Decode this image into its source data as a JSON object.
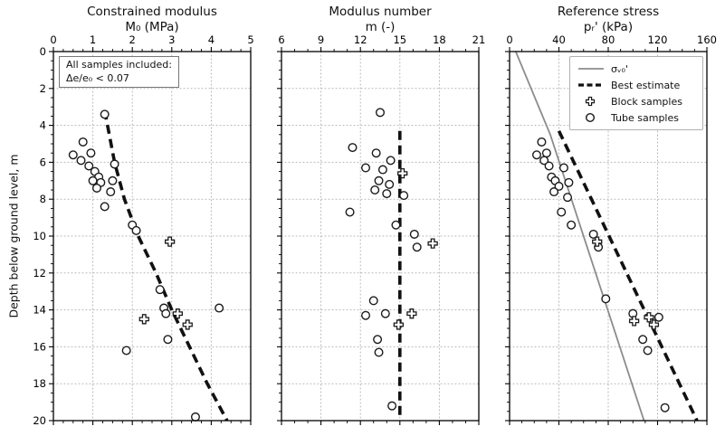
{
  "figure": {
    "ylabel": "Depth below ground level, m"
  },
  "annotation": {
    "line1": "All samples included:",
    "line2": "Δe/e₀ < 0.07"
  },
  "legend": {
    "items": [
      {
        "label": "σᵥ₀'"
      },
      {
        "label": "Best estimate"
      },
      {
        "label": "Block samples"
      },
      {
        "label": "Tube samples"
      }
    ]
  },
  "style": {
    "grid_color": "#b3b3b3",
    "axis_color": "#000000",
    "dash_color": "#111111",
    "sigma_color": "#8c8c8c",
    "marker_edge": "#1a1a1a",
    "marker_fill": "#ffffff"
  },
  "chart_data": [
    {
      "type": "scatter",
      "title": "Constrained modulus",
      "xlabel": "M₀ (MPa)",
      "xlim": [
        0,
        5
      ],
      "xticks": [
        0,
        1,
        2,
        3,
        4,
        5
      ],
      "xminor_step": 0.25,
      "ylim": [
        0,
        20
      ],
      "yticks": [
        0,
        2,
        4,
        6,
        8,
        10,
        12,
        14,
        16,
        18,
        20
      ],
      "yminor_step": 0.5,
      "y_tick_labels": true,
      "tube_samples": [
        [
          1.3,
          3.4
        ],
        [
          0.75,
          4.9
        ],
        [
          0.5,
          5.6
        ],
        [
          0.95,
          5.5
        ],
        [
          0.7,
          5.9
        ],
        [
          0.9,
          6.2
        ],
        [
          1.55,
          6.1
        ],
        [
          1.05,
          6.5
        ],
        [
          1.15,
          6.8
        ],
        [
          1.0,
          7.0
        ],
        [
          1.2,
          7.1
        ],
        [
          1.5,
          7.0
        ],
        [
          1.1,
          7.4
        ],
        [
          1.45,
          7.6
        ],
        [
          1.3,
          8.4
        ],
        [
          2.0,
          9.4
        ],
        [
          2.1,
          9.7
        ],
        [
          2.7,
          12.9
        ],
        [
          2.8,
          13.9
        ],
        [
          4.2,
          13.9
        ],
        [
          2.85,
          14.2
        ],
        [
          2.9,
          15.6
        ],
        [
          1.85,
          16.2
        ],
        [
          3.6,
          19.8
        ]
      ],
      "block_samples": [
        [
          2.95,
          10.3
        ],
        [
          2.3,
          14.5
        ],
        [
          3.15,
          14.2
        ],
        [
          3.4,
          14.8
        ]
      ],
      "best_estimate": [
        [
          1.3,
          3.2
        ],
        [
          1.55,
          6.0
        ],
        [
          1.8,
          8.0
        ],
        [
          2.15,
          10.0
        ],
        [
          2.6,
          12.0
        ],
        [
          3.0,
          14.0
        ],
        [
          3.45,
          16.0
        ],
        [
          3.9,
          18.0
        ],
        [
          4.4,
          20.0
        ]
      ]
    },
    {
      "type": "scatter",
      "title": "Modulus number",
      "xlabel": "m (-)",
      "xlim": [
        6,
        21
      ],
      "xticks": [
        6,
        9,
        12,
        15,
        18,
        21
      ],
      "xminor_step": 1,
      "ylim": [
        0,
        20
      ],
      "yticks": [
        0,
        2,
        4,
        6,
        8,
        10,
        12,
        14,
        16,
        18,
        20
      ],
      "yminor_step": 0.5,
      "y_tick_labels": false,
      "tube_samples": [
        [
          13.5,
          3.3
        ],
        [
          11.4,
          5.2
        ],
        [
          13.2,
          5.5
        ],
        [
          14.3,
          5.9
        ],
        [
          12.4,
          6.3
        ],
        [
          13.7,
          6.4
        ],
        [
          13.4,
          7.0
        ],
        [
          14.2,
          7.2
        ],
        [
          13.1,
          7.5
        ],
        [
          14.0,
          7.7
        ],
        [
          15.3,
          7.8
        ],
        [
          11.2,
          8.7
        ],
        [
          14.7,
          9.4
        ],
        [
          16.1,
          9.9
        ],
        [
          16.3,
          10.6
        ],
        [
          13.0,
          13.5
        ],
        [
          12.4,
          14.3
        ],
        [
          13.9,
          14.2
        ],
        [
          13.3,
          15.6
        ],
        [
          13.4,
          16.3
        ],
        [
          14.4,
          19.2
        ]
      ],
      "block_samples": [
        [
          15.2,
          6.6
        ],
        [
          17.5,
          10.4
        ],
        [
          14.9,
          14.8
        ],
        [
          15.9,
          14.2
        ]
      ],
      "best_estimate": [
        [
          15,
          4.3
        ],
        [
          15,
          20
        ]
      ]
    },
    {
      "type": "scatter",
      "title": "Reference stress",
      "xlabel": "pᵣ' (kPa)",
      "xlim": [
        0,
        160
      ],
      "xticks": [
        0,
        40,
        80,
        120,
        160
      ],
      "xminor_step": 10,
      "ylim": [
        0,
        20
      ],
      "yticks": [
        0,
        2,
        4,
        6,
        8,
        10,
        12,
        14,
        16,
        18,
        20
      ],
      "yminor_step": 0.5,
      "y_tick_labels": false,
      "tube_samples": [
        [
          26,
          4.9
        ],
        [
          22,
          5.6
        ],
        [
          30,
          5.5
        ],
        [
          28,
          5.9
        ],
        [
          32,
          6.2
        ],
        [
          44,
          6.3
        ],
        [
          34,
          6.8
        ],
        [
          37,
          7.0
        ],
        [
          48,
          7.1
        ],
        [
          40,
          7.3
        ],
        [
          36,
          7.6
        ],
        [
          47,
          7.9
        ],
        [
          42,
          8.7
        ],
        [
          50,
          9.4
        ],
        [
          68,
          9.9
        ],
        [
          72,
          10.6
        ],
        [
          78,
          13.4
        ],
        [
          100,
          14.2
        ],
        [
          121,
          14.4
        ],
        [
          108,
          15.6
        ],
        [
          112,
          16.2
        ],
        [
          126,
          19.3
        ]
      ],
      "block_samples": [
        [
          71,
          10.3
        ],
        [
          101,
          14.6
        ],
        [
          113,
          14.4
        ],
        [
          117,
          14.8
        ]
      ],
      "best_estimate": [
        [
          40,
          4.3
        ],
        [
          152,
          20
        ]
      ],
      "sigma_v0": [
        [
          5,
          0
        ],
        [
          33,
          4.5
        ],
        [
          109,
          20
        ]
      ]
    }
  ]
}
